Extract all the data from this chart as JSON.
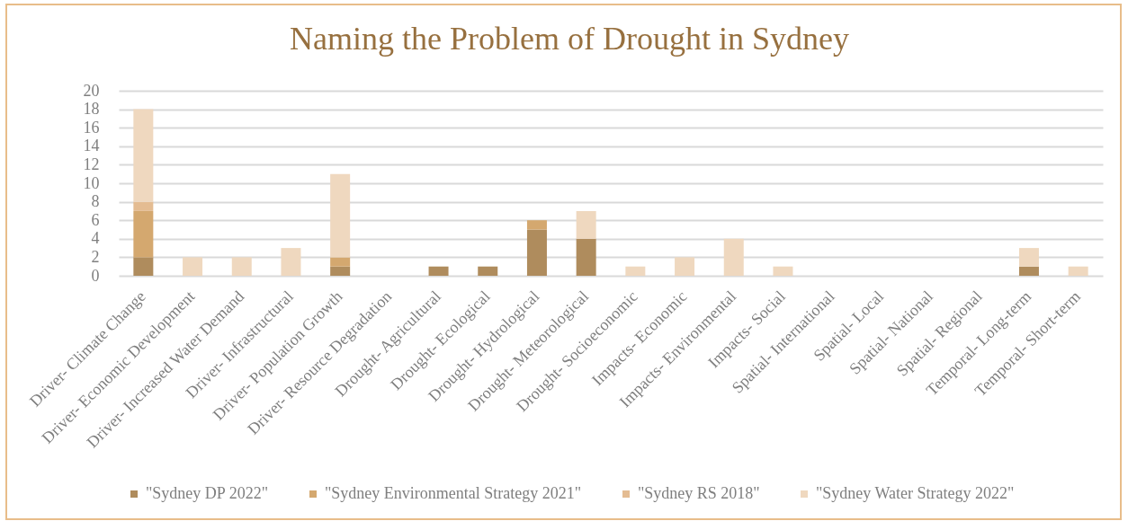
{
  "chart_data": {
    "type": "bar",
    "title": "Naming the Problem of Drought in Sydney",
    "categories": [
      "Driver- Climate Change",
      "Driver- Economic Development",
      "Driver- Increased Water Demand",
      "Driver- Infrastructural",
      "Driver- Population Growth",
      "Driver- Resource Degradation",
      "Drought- Agricultural",
      "Drought- Ecological",
      "Drought- Hydrological",
      "Drought- Meteorological",
      "Drought- Socioeconomic",
      "Impacts- Economic",
      "Impacts- Environmental",
      "Impacts- Social",
      "Spatial- International",
      "Spatial- Local",
      "Spatial- National",
      "Spatial- Regional",
      "Temporal- Long-term",
      "Temporal- Short-term"
    ],
    "series": [
      {
        "name": "\"Sydney DP 2022\"",
        "color": "#af8c5d",
        "values": [
          2,
          0,
          0,
          0,
          1,
          0,
          1,
          1,
          5,
          4,
          0,
          0,
          0,
          0,
          0,
          0,
          0,
          0,
          1,
          0
        ]
      },
      {
        "name": "\"Sydney Environmental Strategy 2021\"",
        "color": "#d4a86f",
        "values": [
          5,
          0,
          0,
          0,
          1,
          0,
          0,
          0,
          1,
          0,
          0,
          0,
          0,
          0,
          0,
          0,
          0,
          0,
          0,
          0
        ]
      },
      {
        "name": "\"Sydney RS 2018\"",
        "color": "#e4bc92",
        "values": [
          1,
          0,
          0,
          0,
          0,
          0,
          0,
          0,
          0,
          0,
          0,
          0,
          0,
          0,
          0,
          0,
          0,
          0,
          0,
          0
        ]
      },
      {
        "name": "\"Sydney Water Strategy 2022\"",
        "color": "#efd8bf",
        "values": [
          10,
          2,
          2,
          3,
          9,
          0,
          0,
          0,
          0,
          3,
          1,
          2,
          4,
          1,
          0,
          0,
          0,
          0,
          2,
          1
        ]
      }
    ],
    "stacked": true,
    "ylim": [
      0,
      20
    ],
    "yticks": [
      0,
      2,
      4,
      6,
      8,
      10,
      12,
      14,
      16,
      18,
      20
    ],
    "grid": "y",
    "legend": "bottom"
  }
}
